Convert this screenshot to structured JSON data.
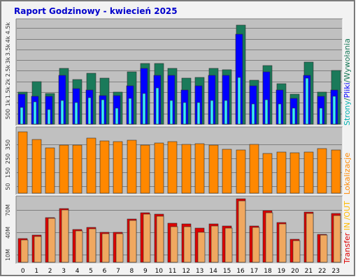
{
  "title": "Raport Godzinowy -  kwiecień 2025",
  "chart_data": [
    {
      "type": "bar",
      "name": "hourly-visits",
      "categories": [
        "0",
        "1",
        "2",
        "3",
        "4",
        "5",
        "6",
        "7",
        "8",
        "9",
        "10",
        "11",
        "12",
        "13",
        "14",
        "15",
        "16",
        "17",
        "18",
        "19",
        "20",
        "21",
        "22",
        "23"
      ],
      "y_ticks": [
        {
          "value": 500,
          "label": "500"
        },
        {
          "value": 1000,
          "label": "1k"
        },
        {
          "value": 1500,
          "label": "1.5k"
        },
        {
          "value": 2000,
          "label": "2k"
        },
        {
          "value": 2500,
          "label": "2.5k"
        },
        {
          "value": 3000,
          "label": "3k"
        },
        {
          "value": 3500,
          "label": "3.5k"
        },
        {
          "value": 4000,
          "label": "4k"
        },
        {
          "value": 4500,
          "label": "4.5k"
        }
      ],
      "ylim": [
        0,
        4800
      ],
      "series": [
        {
          "name": "Strony",
          "color": "#1a7a5a",
          "values": [
            1500,
            2000,
            1450,
            2600,
            2100,
            2400,
            2150,
            1500,
            2450,
            2850,
            2850,
            2600,
            2150,
            2200,
            2600,
            2550,
            4650,
            2050,
            2750,
            1900,
            1400,
            2900,
            1500,
            2500
          ]
        },
        {
          "name": "Pliki",
          "color": "#0000ff",
          "values": [
            1400,
            1300,
            1300,
            2300,
            1650,
            1600,
            1350,
            1350,
            1800,
            2600,
            2300,
            2300,
            1600,
            1800,
            2300,
            2300,
            4200,
            1800,
            2450,
            1600,
            1200,
            2300,
            1300,
            1600
          ]
        },
        {
          "name": "Wywołania",
          "color": "#33eeff",
          "values": [
            800,
            1050,
            700,
            1100,
            1000,
            1250,
            1150,
            750,
            1200,
            1450,
            1700,
            1100,
            1000,
            1000,
            1100,
            1100,
            2200,
            950,
            1150,
            950,
            750,
            2150,
            750,
            1300
          ]
        }
      ],
      "legend": [
        {
          "text": "Strony",
          "color": "#00b0b0"
        },
        {
          "text": "/",
          "color": "#1a7a5a"
        },
        {
          "text": "Pliki",
          "color": "#0000ff"
        },
        {
          "text": "/",
          "color": "#1a7a5a"
        },
        {
          "text": "Wywołania",
          "color": "#1a7a5a"
        }
      ]
    },
    {
      "type": "bar",
      "name": "hourly-sites",
      "categories": [
        "0",
        "1",
        "2",
        "3",
        "4",
        "5",
        "6",
        "7",
        "8",
        "9",
        "10",
        "11",
        "12",
        "13",
        "14",
        "15",
        "16",
        "17",
        "18",
        "19",
        "20",
        "21",
        "22",
        "23"
      ],
      "y_ticks": [
        {
          "value": 50,
          "label": "50"
        },
        {
          "value": 150,
          "label": "150"
        },
        {
          "value": 250,
          "label": "250"
        },
        {
          "value": 350,
          "label": "350"
        }
      ],
      "ylim": [
        0,
        455
      ],
      "series": [
        {
          "name": "Lokalizacje",
          "color": "#ff8800",
          "values": [
            440,
            385,
            325,
            345,
            345,
            395,
            375,
            370,
            380,
            345,
            360,
            370,
            350,
            355,
            345,
            315,
            310,
            350,
            285,
            295,
            290,
            295,
            320,
            310
          ]
        }
      ],
      "legend": [
        {
          "text": "Lokalizacje",
          "color": "#ff8800"
        }
      ]
    },
    {
      "type": "bar",
      "name": "hourly-transfer",
      "categories": [
        "0",
        "1",
        "2",
        "3",
        "4",
        "5",
        "6",
        "7",
        "8",
        "9",
        "10",
        "11",
        "12",
        "13",
        "14",
        "15",
        "16",
        "17",
        "18",
        "19",
        "20",
        "21",
        "22",
        "23"
      ],
      "y_ticks": [
        {
          "value": 10,
          "label": "10M"
        },
        {
          "value": 40,
          "label": "40M"
        },
        {
          "value": 70,
          "label": "70M"
        }
      ],
      "ylim": [
        0,
        85
      ],
      "series": [
        {
          "name": "IN",
          "color": "#dd0000",
          "values": [
            32,
            36,
            60,
            72,
            44,
            47,
            40,
            40,
            58,
            66,
            64,
            52,
            51,
            46,
            51,
            49,
            85,
            49,
            69,
            53,
            31,
            67,
            37,
            65
          ]
        },
        {
          "name": "OUT",
          "color": "#f0a860",
          "values": [
            30,
            35,
            59,
            70,
            42,
            45,
            38,
            38,
            56,
            64,
            62,
            48,
            48,
            40,
            49,
            46,
            82,
            47,
            66,
            51,
            29,
            65,
            36,
            63
          ]
        }
      ],
      "legend": [
        {
          "text": "Transfer",
          "color": "#dd0000"
        },
        {
          "text": " IN ",
          "color": "#ffbb00"
        },
        {
          "text": "/",
          "color": "#ffbb00"
        },
        {
          "text": "OUT",
          "color": "#ffbb00"
        }
      ]
    }
  ]
}
